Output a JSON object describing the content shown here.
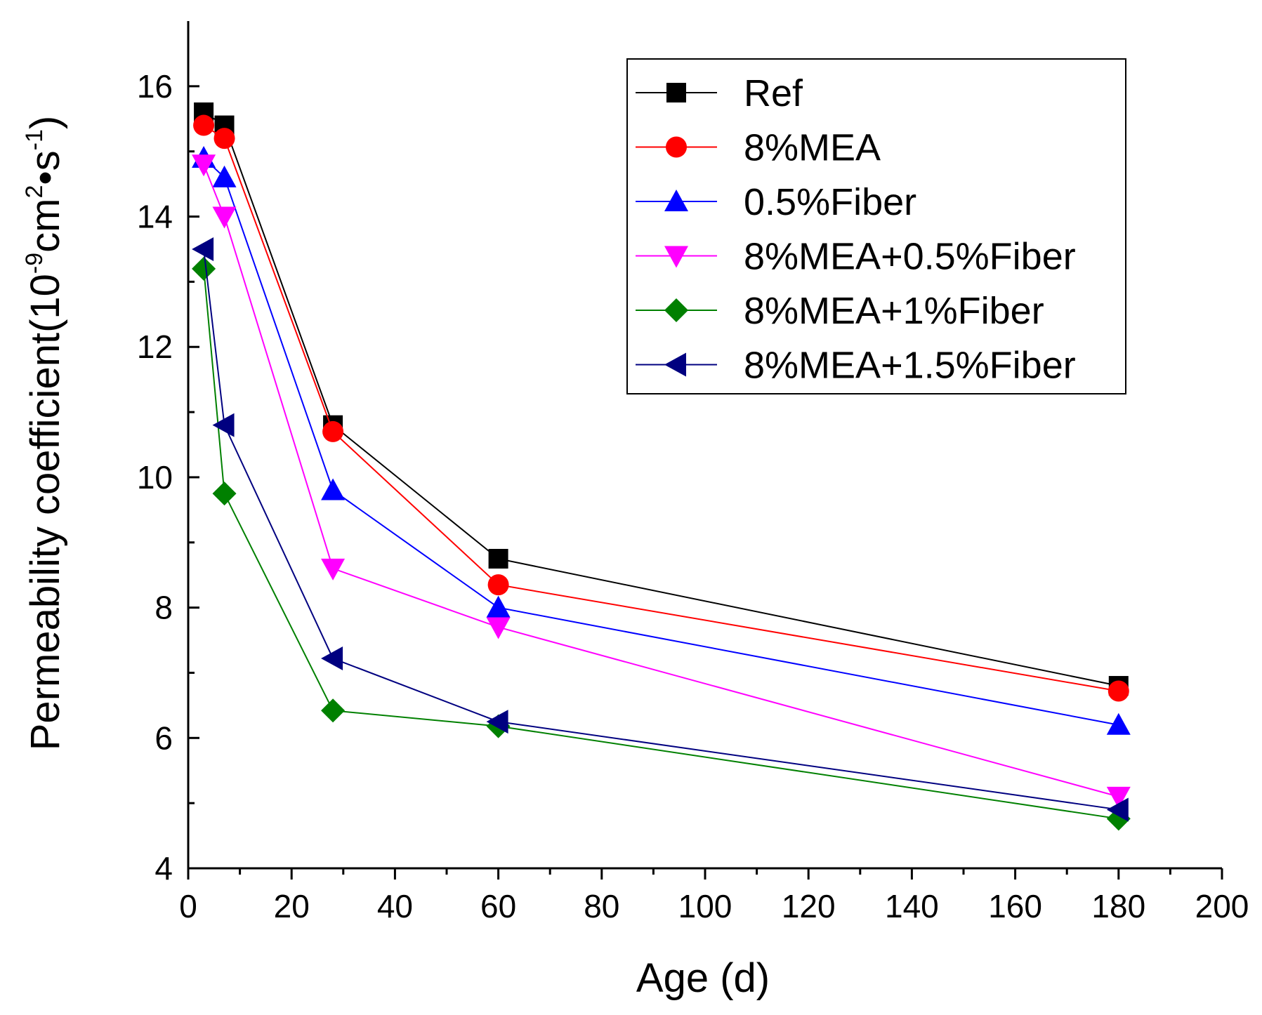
{
  "chart_data": {
    "type": "line",
    "title": "",
    "xlabel": "Age (d)",
    "ylabel_parts": {
      "prefix": "Permeability coefficient(10",
      "exp1": "-9",
      "unit1": "cm",
      "exp2": "2",
      "sep": "•s",
      "exp3": "-1",
      "suffix": ")"
    },
    "xlim": [
      0,
      200
    ],
    "ylim": [
      4,
      17
    ],
    "xticks": [
      0,
      20,
      40,
      60,
      80,
      100,
      120,
      140,
      160,
      180,
      200
    ],
    "yticks": [
      4,
      6,
      8,
      10,
      12,
      14,
      16
    ],
    "grid": false,
    "legend_position": "top-right",
    "x": [
      3,
      7,
      28,
      60,
      180
    ],
    "series": [
      {
        "name": "Ref",
        "color": "#000000",
        "marker": "square",
        "values": [
          15.6,
          15.4,
          10.8,
          8.75,
          6.8
        ]
      },
      {
        "name": "8%MEA",
        "color": "#ff0000",
        "marker": "circle",
        "values": [
          15.4,
          15.2,
          10.7,
          8.35,
          6.72
        ]
      },
      {
        "name": "0.5%Fiber",
        "color": "#0000ff",
        "marker": "triangle-up",
        "values": [
          14.9,
          14.6,
          9.8,
          8.0,
          6.2
        ]
      },
      {
        "name": "8%MEA+0.5%Fiber",
        "color": "#ff00ff",
        "marker": "triangle-down",
        "values": [
          14.8,
          14.0,
          8.6,
          7.7,
          5.1
        ]
      },
      {
        "name": "8%MEA+1%Fiber",
        "color": "#008000",
        "marker": "diamond",
        "values": [
          13.2,
          9.75,
          6.42,
          6.18,
          4.76
        ]
      },
      {
        "name": "8%MEA+1.5%Fiber",
        "color": "#000080",
        "marker": "triangle-left",
        "values": [
          13.5,
          10.8,
          7.22,
          6.25,
          4.9
        ]
      }
    ]
  }
}
